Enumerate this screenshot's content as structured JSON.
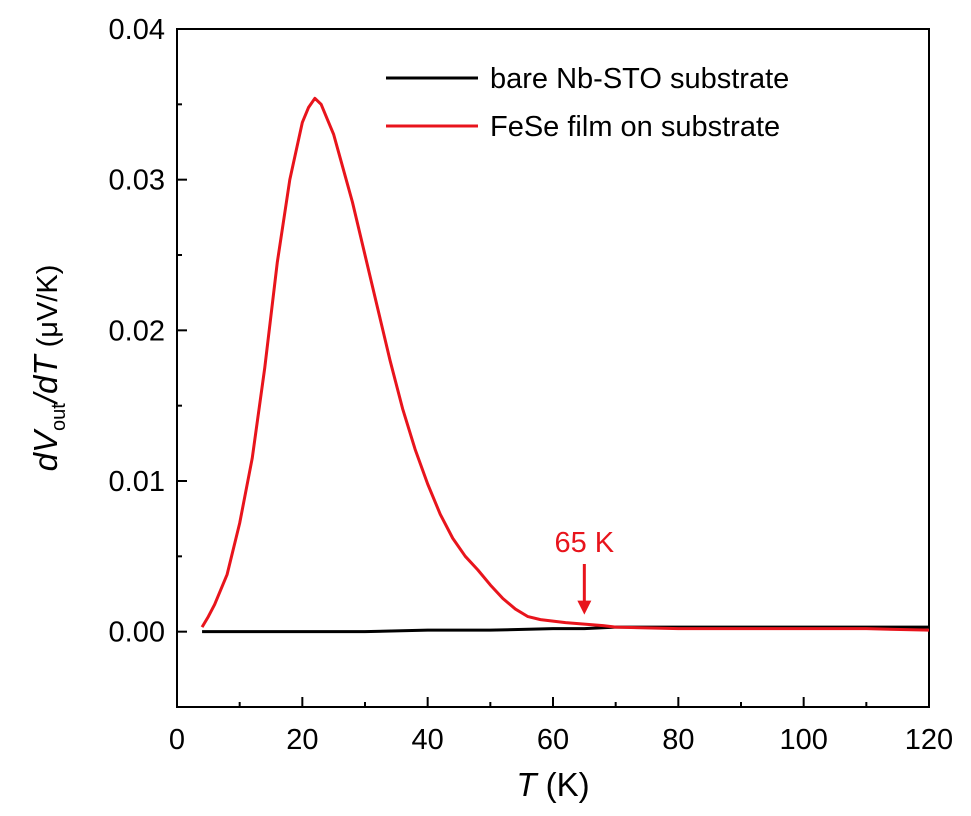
{
  "chart_data": {
    "type": "line",
    "xlabel": {
      "var": "T",
      "unit": " (K)"
    },
    "ylabel": {
      "d1": "d",
      "v": "V",
      "sub": "out",
      "slash": "/",
      "d2": "d",
      "t": "T",
      "unit": " (μV/K)"
    },
    "xlim": [
      0,
      120
    ],
    "ylim": [
      -0.005,
      0.04
    ],
    "xticks": [
      0,
      20,
      40,
      60,
      80,
      100,
      120
    ],
    "xtick_labels": [
      "0",
      "20",
      "40",
      "60",
      "80",
      "100",
      "120"
    ],
    "yticks": [
      0.0,
      0.01,
      0.02,
      0.03,
      0.04
    ],
    "ytick_labels": [
      "0.00",
      "0.01",
      "0.02",
      "0.03",
      "0.04"
    ],
    "grid": false,
    "legend": "top-right",
    "annotation": {
      "text": "65 K",
      "x": 65,
      "y": 0.0006,
      "color": "#e8141c"
    },
    "series": [
      {
        "name": "bare Nb-STO substrate",
        "color": "#000000",
        "x": [
          4,
          10,
          20,
          30,
          40,
          50,
          60,
          65,
          70,
          80,
          90,
          100,
          110,
          120
        ],
        "y": [
          0.0,
          0.0,
          0.0,
          0.0,
          0.0001,
          0.0001,
          0.0002,
          0.0002,
          0.0003,
          0.0003,
          0.0003,
          0.0003,
          0.0003,
          0.0003
        ]
      },
      {
        "name": "FeSe film on substrate",
        "color": "#e8141c",
        "x": [
          4,
          5,
          6,
          8,
          10,
          12,
          14,
          16,
          18,
          20,
          21,
          22,
          23,
          24,
          25,
          26,
          28,
          30,
          32,
          34,
          36,
          38,
          40,
          42,
          44,
          46,
          48,
          50,
          52,
          54,
          56,
          58,
          60,
          62,
          65,
          68,
          70,
          80,
          90,
          100,
          110,
          120
        ],
        "y": [
          0.0003,
          0.001,
          0.0018,
          0.0038,
          0.0072,
          0.0115,
          0.0175,
          0.0245,
          0.03,
          0.0338,
          0.0348,
          0.0354,
          0.035,
          0.034,
          0.033,
          0.0315,
          0.0285,
          0.025,
          0.0215,
          0.018,
          0.0148,
          0.0121,
          0.0098,
          0.0078,
          0.0062,
          0.005,
          0.0041,
          0.0031,
          0.0022,
          0.0015,
          0.001,
          0.0008,
          0.0007,
          0.0006,
          0.0005,
          0.0004,
          0.0003,
          0.0002,
          0.0002,
          0.0002,
          0.0002,
          0.0001
        ]
      }
    ]
  }
}
